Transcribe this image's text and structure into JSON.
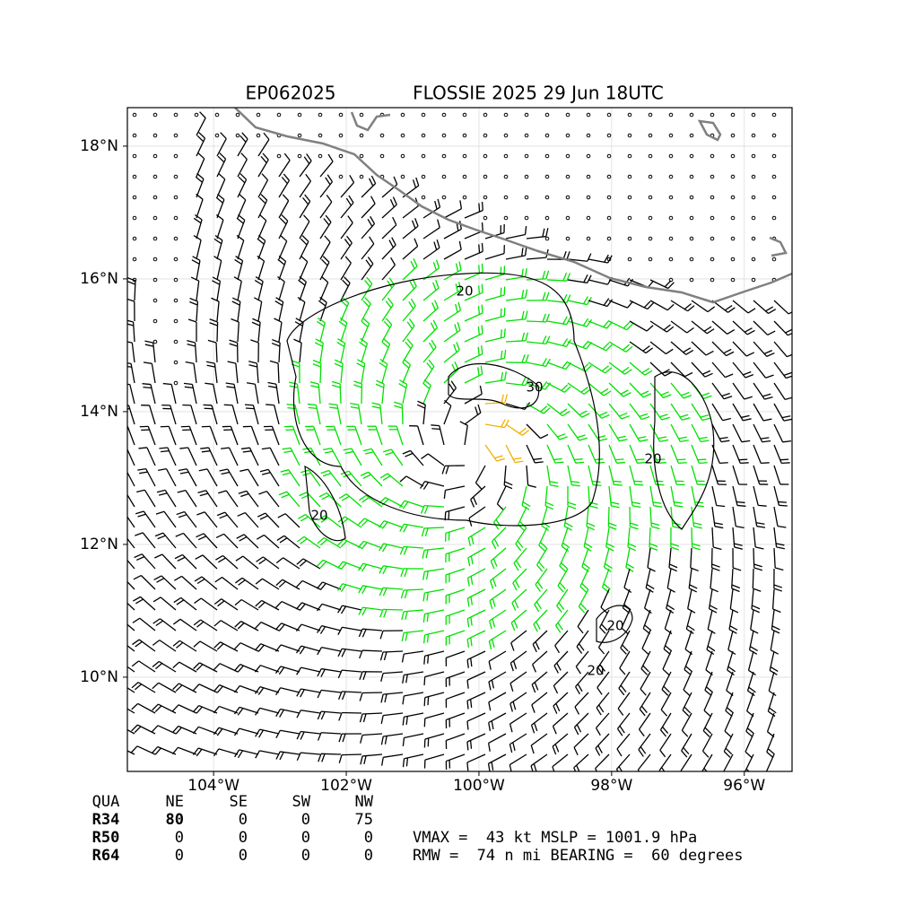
{
  "chart_data": {
    "type": "map",
    "title_left": "EP062025",
    "title_right": "FLOSSIE 2025 29 Jun 18UTC",
    "xlim": [
      -105.3,
      -95.28
    ],
    "ylim": [
      8.58,
      18.58
    ],
    "xticks": [
      {
        "value": -104,
        "label": "104°W"
      },
      {
        "value": -102,
        "label": "102°W"
      },
      {
        "value": -100,
        "label": "100°W"
      },
      {
        "value": -98,
        "label": "98°W"
      },
      {
        "value": -96,
        "label": "96°W"
      }
    ],
    "yticks": [
      {
        "value": 10,
        "label": "10°N"
      },
      {
        "value": 12,
        "label": "12°N"
      },
      {
        "value": 14,
        "label": "14°N"
      },
      {
        "value": 16,
        "label": "16°N"
      },
      {
        "value": 18,
        "label": "18°N"
      }
    ],
    "grid": true,
    "contour_labels": [
      "20",
      "20",
      "30",
      "20",
      "20",
      "20"
    ],
    "radii_table": {
      "header": [
        "QUA",
        "NE",
        "SE",
        "SW",
        "NW"
      ],
      "rows": [
        [
          "R34",
          "80",
          "0",
          "0",
          "75"
        ],
        [
          "R50",
          "0",
          "0",
          "0",
          "0"
        ],
        [
          "R64",
          "0",
          "0",
          "0",
          "0"
        ]
      ]
    },
    "stats": [
      "VMAX =  43 kt MSLP = 1001.9 hPa",
      "RMW =  74 n mi BEARING =  60 degrees"
    ]
  }
}
